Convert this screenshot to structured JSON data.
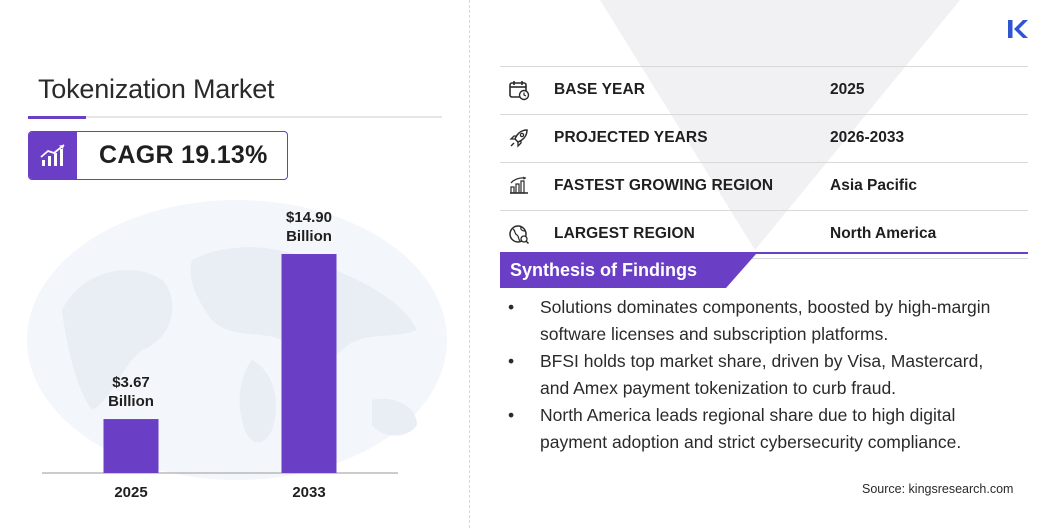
{
  "title": "Tokenization Market",
  "cagr": "CAGR 19.13%",
  "chart_data": {
    "type": "bar",
    "categories": [
      "2025",
      "2033"
    ],
    "values": [
      3.67,
      14.9
    ],
    "value_labels": [
      [
        "$3.67",
        "Billion"
      ],
      [
        "$14.90",
        "Billion"
      ]
    ],
    "unit": "USD Billion",
    "bar_color": "#6a3fc5",
    "ylim": [
      0,
      16
    ],
    "grid": false,
    "legend": "none"
  },
  "table": [
    {
      "icon": "calendar-icon",
      "label": "BASE YEAR",
      "value": "2025"
    },
    {
      "icon": "rocket-icon",
      "label": "PROJECTED YEARS",
      "value": "2026-2033"
    },
    {
      "icon": "region-growth-icon",
      "label": "FASTEST GROWING REGION",
      "value": "Asia Pacific"
    },
    {
      "icon": "globe-icon",
      "label": "LARGEST REGION",
      "value": "North America"
    }
  ],
  "synthesis": {
    "title": "Synthesis of Findings",
    "items": [
      "Solutions dominates components, boosted by high-margin software licenses and subscription platforms.",
      "BFSI holds top market share, driven by Visa, Mastercard, and Amex payment tokenization to curb fraud.",
      "North America leads regional share due to high digital payment adoption and strict cybersecurity compliance."
    ]
  },
  "source": "Source:  kingsresearch.com",
  "colors": {
    "accent": "#6a3fc5",
    "logo": "#2f55d4"
  }
}
